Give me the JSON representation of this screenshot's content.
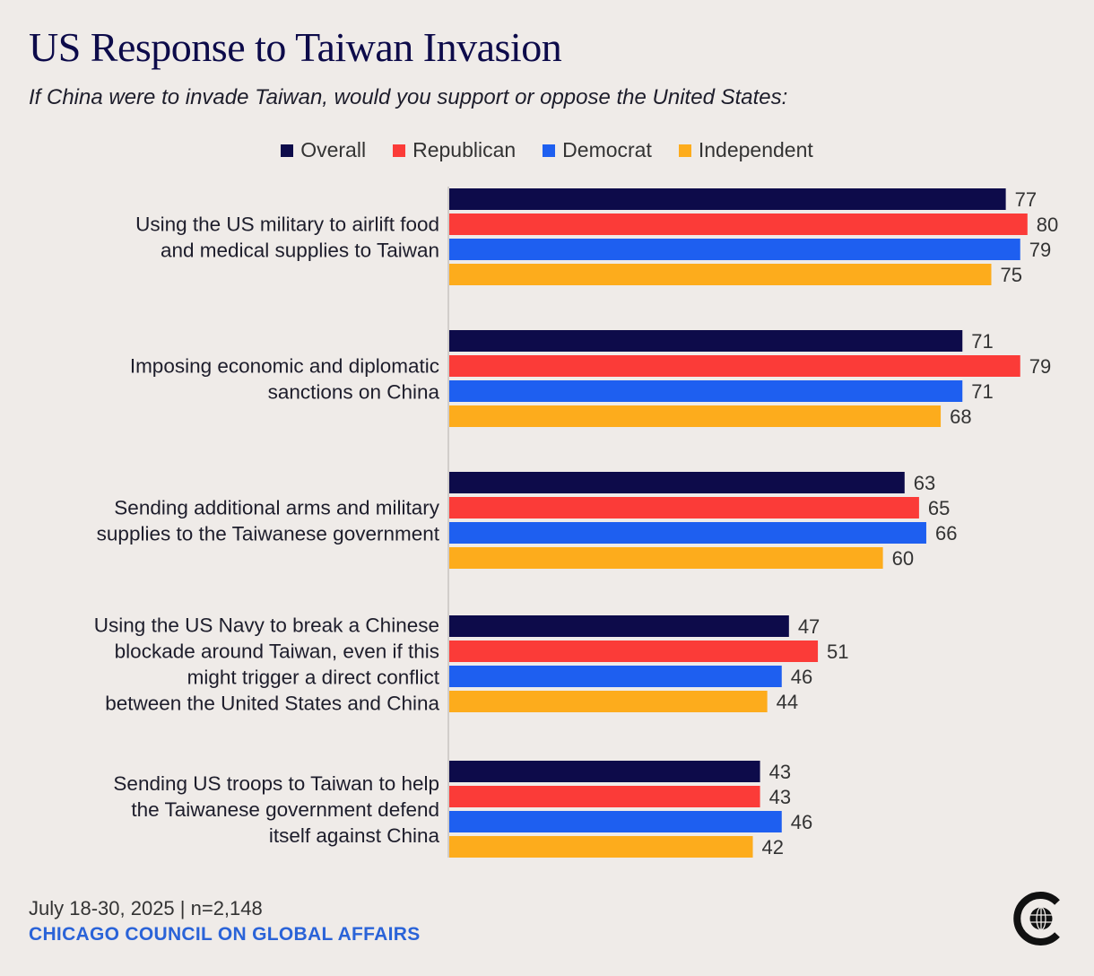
{
  "title": "US Response to Taiwan Invasion",
  "subtitle": "If China were to invade Taiwan, would you support or oppose the United States:",
  "colors": {
    "background": "#efebe8",
    "Overall": "#0d0b4a",
    "Republican": "#fb3b38",
    "Democrat": "#1e5ff0",
    "Independent": "#fdac1c",
    "title": "#0d0b4a",
    "org": "#2a63d8"
  },
  "chart_data": {
    "type": "bar",
    "orientation": "horizontal",
    "title": "US Response to Taiwan Invasion",
    "xlim": [
      0,
      80
    ],
    "legend_position": "top",
    "categories": [
      [
        "Using the US military to airlift food",
        "and medical supplies to Taiwan"
      ],
      [
        "Imposing economic and diplomatic",
        "sanctions on China"
      ],
      [
        "Sending additional arms and military",
        "supplies to the Taiwanese government"
      ],
      [
        "Using the US Navy to break a Chinese",
        "blockade around Taiwan, even if this",
        "might trigger a direct conflict",
        "between the United States and China"
      ],
      [
        "Sending US troops to Taiwan to help",
        "the Taiwanese government defend",
        "itself against China"
      ]
    ],
    "series": [
      {
        "name": "Overall",
        "values": [
          77,
          71,
          63,
          47,
          43
        ]
      },
      {
        "name": "Republican",
        "values": [
          80,
          79,
          65,
          51,
          43
        ]
      },
      {
        "name": "Democrat",
        "values": [
          79,
          71,
          66,
          46,
          46
        ]
      },
      {
        "name": "Independent",
        "values": [
          75,
          68,
          60,
          44,
          42
        ]
      }
    ]
  },
  "footer": {
    "date": "July 18-30, 2025 | n=2,148",
    "org": "CHICAGO COUNCIL ON GLOBAL AFFAIRS",
    "logo_icon": "chicago-council-globe-logo"
  }
}
